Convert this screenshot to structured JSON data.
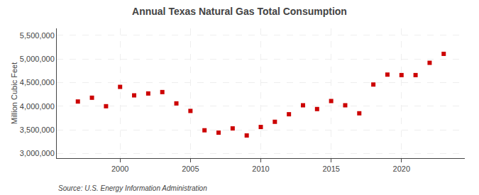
{
  "chart_data": {
    "type": "scatter",
    "title": "Annual Texas Natural Gas Total Consumption",
    "ylabel": "Million Cubic Feet",
    "source": "Source: U.S. Energy Information Administration",
    "x": [
      1997,
      1998,
      1999,
      2000,
      2001,
      2002,
      2003,
      2004,
      2005,
      2006,
      2007,
      2008,
      2009,
      2010,
      2011,
      2012,
      2013,
      2014,
      2015,
      2016,
      2017,
      2018,
      2019,
      2020,
      2021,
      2022,
      2023
    ],
    "values": [
      4100000,
      4180000,
      4000000,
      4410000,
      4230000,
      4270000,
      4300000,
      4060000,
      3900000,
      3490000,
      3440000,
      3530000,
      3380000,
      3560000,
      3670000,
      3830000,
      4020000,
      3940000,
      4110000,
      4020000,
      3850000,
      4460000,
      4670000,
      4660000,
      4660000,
      4920000,
      5110000
    ],
    "color": "#cc0000",
    "marker": "square",
    "xlim": [
      1995.5,
      2024.5
    ],
    "xticks": [
      2000,
      2005,
      2010,
      2015,
      2020
    ],
    "ylim": [
      2900000,
      5650000
    ],
    "yticks": [
      {
        "value": 3000000,
        "label": "3,000,000"
      },
      {
        "value": 3500000,
        "label": "3,500,000"
      },
      {
        "value": 4000000,
        "label": "4,000,000"
      },
      {
        "value": 4500000,
        "label": "4,500,000"
      },
      {
        "value": 5000000,
        "label": "5,000,000"
      },
      {
        "value": 5500000,
        "label": "5,500,000"
      }
    ],
    "grid": true
  }
}
